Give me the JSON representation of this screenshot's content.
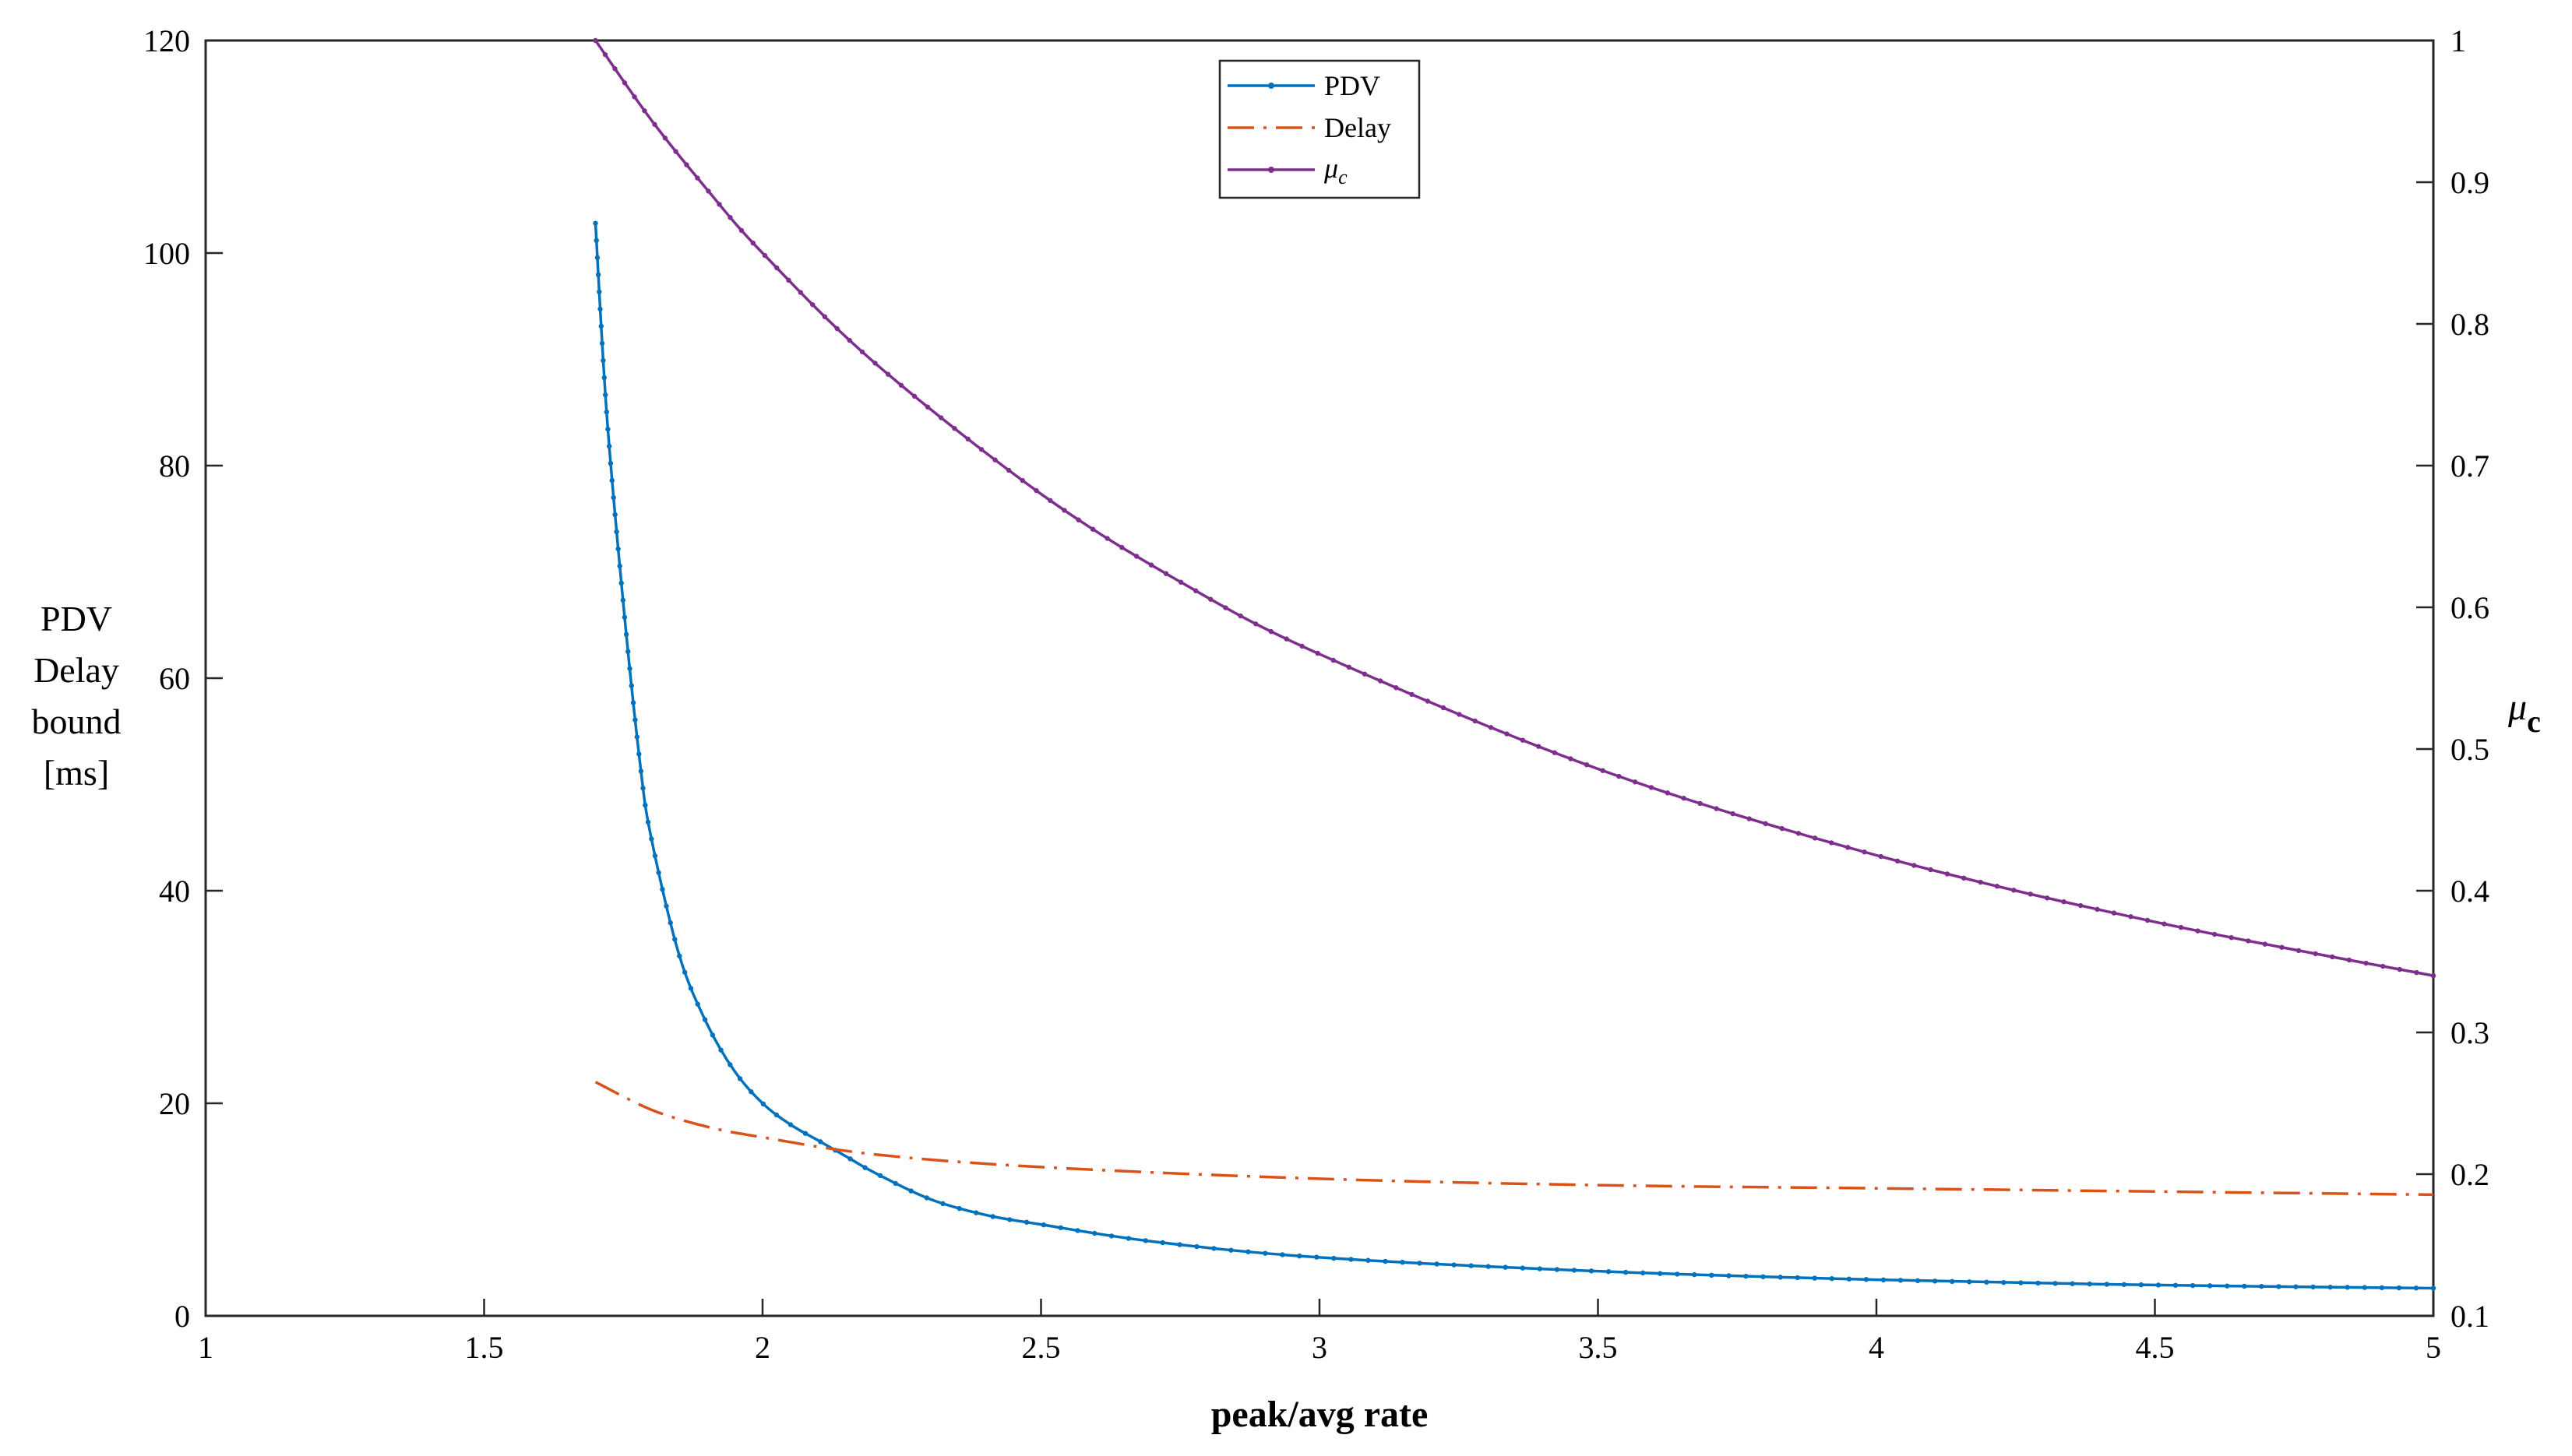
{
  "chart_data": {
    "type": "line",
    "xlabel": "peak/avg rate",
    "ylabel_left_lines": [
      "PDV",
      "Delay",
      "bound",
      "[ms]"
    ],
    "ylabel_right": {
      "symbol": "μ",
      "subscript": "c"
    },
    "xlim": [
      1,
      5
    ],
    "ylim_left": [
      0,
      120
    ],
    "ylim_right": [
      0.1,
      1
    ],
    "x_ticks": [
      "1",
      "1.5",
      "2",
      "2.5",
      "3",
      "3.5",
      "4",
      "4.5",
      "5"
    ],
    "y_left_ticks": [
      "0",
      "20",
      "40",
      "60",
      "80",
      "100",
      "120"
    ],
    "y_right_ticks": [
      "0.1",
      "0.2",
      "0.3",
      "0.4",
      "0.5",
      "0.6",
      "0.7",
      "0.8",
      "0.9",
      "1"
    ],
    "legend_position": "top-center",
    "grid": false,
    "series": [
      {
        "name": "PDV",
        "axis": "left",
        "color": "#0072BD",
        "style": "solid-with-dots",
        "x": [
          1.7,
          1.72,
          1.75,
          1.78,
          1.8,
          1.85,
          1.9,
          1.95,
          2.0,
          2.05,
          2.1,
          2.15,
          2.2,
          2.3,
          2.4,
          2.5,
          2.7,
          3.0,
          3.5,
          4.0,
          4.5,
          5.0
        ],
        "values": [
          102.8,
          85,
          67,
          52,
          45,
          34,
          27.5,
          23,
          20,
          18,
          16.5,
          15,
          13.5,
          11,
          9.5,
          8.6,
          7,
          5.5,
          4.2,
          3.4,
          2.9,
          2.6
        ]
      },
      {
        "name": "Delay",
        "axis": "left",
        "color": "#D95319",
        "style": "dash-dot",
        "x": [
          1.7,
          1.8,
          1.9,
          2.0,
          2.2,
          2.5,
          3.0,
          3.5,
          4.0,
          4.5,
          5.0
        ],
        "values": [
          22,
          19.4,
          17.8,
          16.8,
          15.2,
          14.0,
          12.9,
          12.3,
          12.0,
          11.7,
          11.4
        ]
      },
      {
        "name": "μc",
        "name_symbol": "μ",
        "name_subscript": "c",
        "axis": "right",
        "color": "#7E2F8E",
        "style": "solid-with-dots",
        "x": [
          1.7,
          1.8,
          1.9,
          2.0,
          2.2,
          2.5,
          2.75,
          3.0,
          3.5,
          4.0,
          4.5,
          5.0
        ],
        "values": [
          1.0,
          0.944,
          0.895,
          0.85,
          0.773,
          0.68,
          0.618,
          0.567,
          0.486,
          0.425,
          0.378,
          0.34
        ]
      }
    ]
  }
}
